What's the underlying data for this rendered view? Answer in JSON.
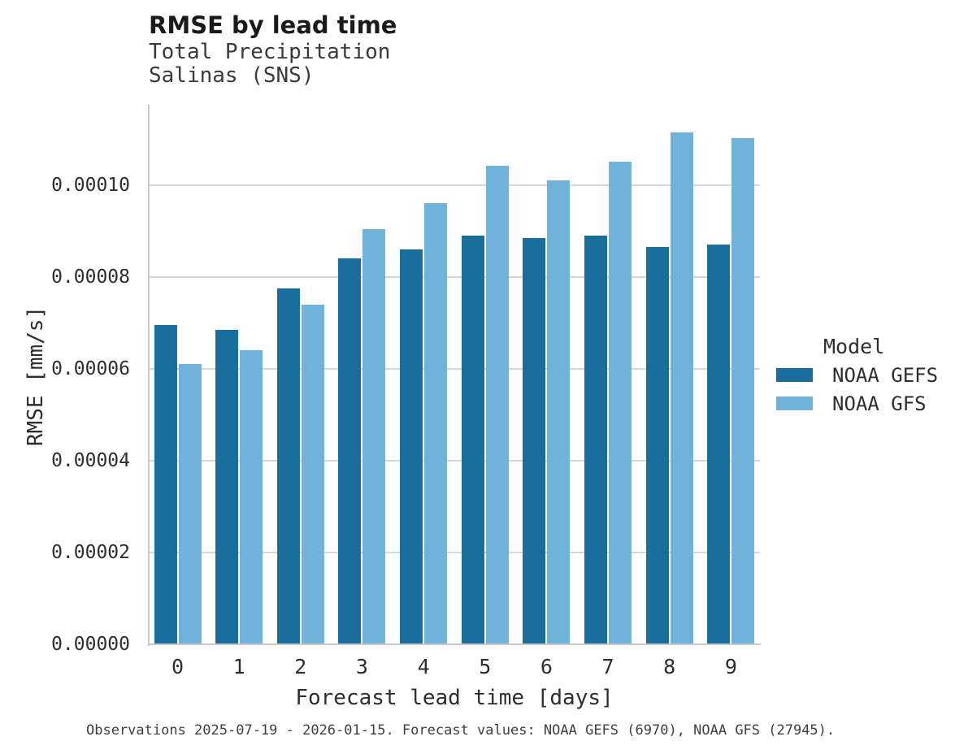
{
  "chart_data": {
    "type": "bar",
    "title": "RMSE by lead time",
    "subtitle_lines": [
      "Total Precipitation",
      "Salinas (SNS)"
    ],
    "xlabel": "Forecast lead time [days]",
    "ylabel": "RMSE [mm/s]",
    "categories": [
      "0",
      "1",
      "2",
      "3",
      "4",
      "5",
      "6",
      "7",
      "8",
      "9"
    ],
    "series": [
      {
        "name": "NOAA GEFS",
        "color": "#1A6E9C",
        "values": [
          6.95e-05,
          6.85e-05,
          7.75e-05,
          8.4e-05,
          8.6e-05,
          8.9e-05,
          8.85e-05,
          8.9e-05,
          8.65e-05,
          8.7e-05
        ]
      },
      {
        "name": "NOAA GFS",
        "color": "#6FB2DA",
        "values": [
          6.1e-05,
          6.4e-05,
          7.4e-05,
          9.05e-05,
          9.6e-05,
          0.0001043,
          0.0001011,
          0.0001051,
          0.0001115,
          0.0001102
        ]
      }
    ],
    "ylim": [
      0,
      0.0001175
    ],
    "yticks": [
      0,
      2e-05,
      4e-05,
      6e-05,
      8e-05,
      0.0001
    ],
    "ytick_decimals": 5,
    "grid": "horizontal",
    "legend_title": "Model",
    "legend_position": "right",
    "caption": "Observations 2025-07-19 - 2026-01-15. Forecast values: NOAA GEFS (6970), NOAA GFS (27945)."
  }
}
